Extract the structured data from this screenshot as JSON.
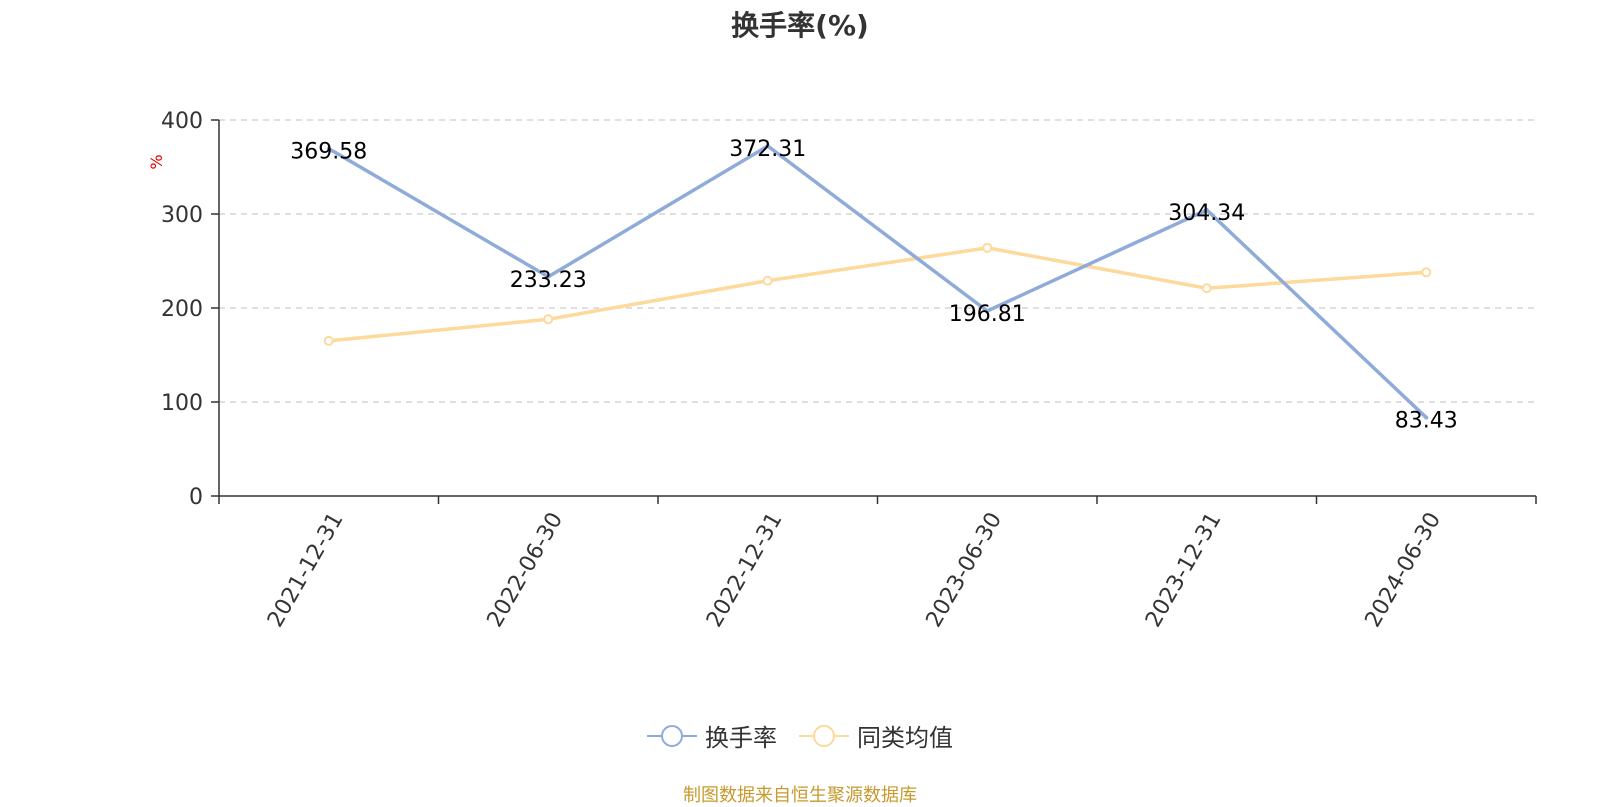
{
  "chart_data": {
    "type": "line",
    "title": "换手率(%)",
    "ylabel": "%",
    "categories": [
      "2021-12-31",
      "2022-06-30",
      "2022-12-31",
      "2023-06-30",
      "2023-12-31",
      "2024-06-30"
    ],
    "ylim": [
      0,
      400
    ],
    "yticks": [
      0,
      100,
      200,
      300,
      400
    ],
    "grid": true,
    "legend_position": "bottom-center",
    "series": [
      {
        "name": "换手率",
        "color": "#8fabd9",
        "values": [
          369.58,
          233.23,
          372.31,
          196.81,
          304.34,
          83.43
        ],
        "labels": [
          "369.58",
          "233.23",
          "372.31",
          "196.81",
          "304.34",
          "83.43"
        ]
      },
      {
        "name": "同类均值",
        "color": "#fdd99b",
        "values": [
          165,
          188,
          229,
          264,
          221,
          238
        ]
      }
    ]
  },
  "source_text": "制图数据来自恒生聚源数据库"
}
